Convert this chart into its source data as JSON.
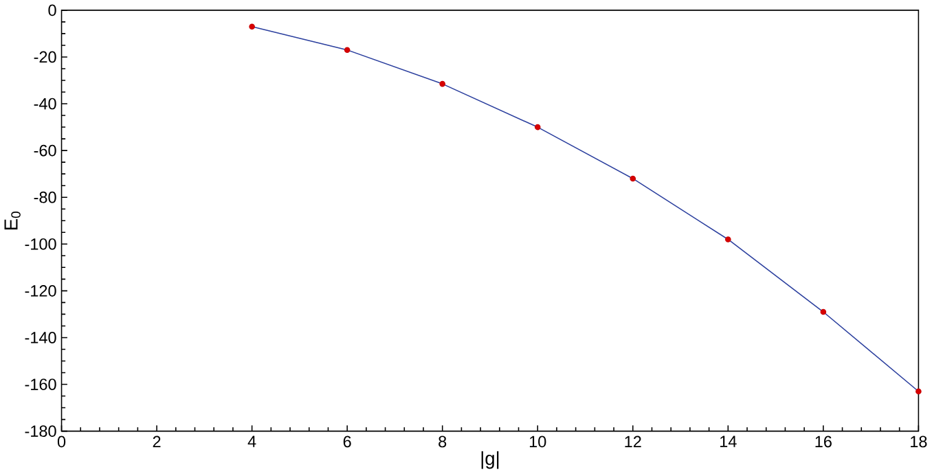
{
  "chart_data": {
    "type": "line",
    "xlabel": "|g|",
    "ylabel": "E$_{0}$",
    "x": [
      4,
      6,
      8,
      10,
      12,
      14,
      16,
      18
    ],
    "series": [
      {
        "color": "#2b3f9e",
        "values": [
          -7,
          -17,
          -31.5,
          -50,
          -72,
          -98,
          -129,
          -163
        ]
      }
    ],
    "marker": "circle",
    "xlim": [
      0,
      18
    ],
    "ylim": [
      -180,
      0
    ],
    "xticks": [
      0,
      2,
      4,
      6,
      8,
      10,
      12,
      14,
      16,
      18
    ],
    "yticks": [
      -180,
      -160,
      -140,
      -120,
      -100,
      -80,
      -60,
      -40,
      -20,
      0
    ]
  }
}
